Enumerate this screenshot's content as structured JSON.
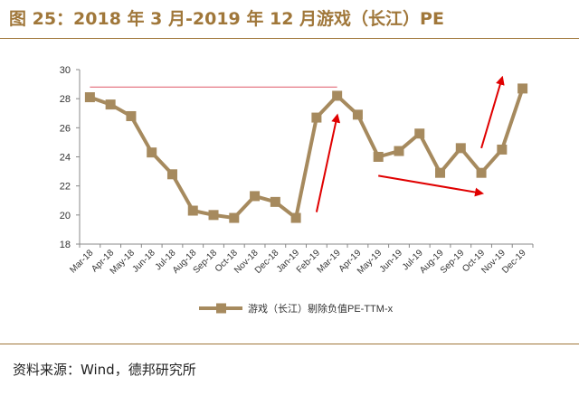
{
  "title": "图 25：2018 年 3 月-2019 年 12 月游戏（长江）PE",
  "source": "资料来源：Wind，德邦研究所",
  "colors": {
    "series": "#a68a5e",
    "reference_line": "#e26a78",
    "arrow": "#e00000",
    "title": "#a0773a"
  },
  "chart_data": {
    "type": "line",
    "categories": [
      "Mar-18",
      "Apr-18",
      "May-18",
      "Jun-18",
      "Jul-18",
      "Aug-18",
      "Sep-18",
      "Oct-18",
      "Nov-18",
      "Dec-18",
      "Jan-19",
      "Feb-19",
      "Mar-19",
      "Apr-19",
      "May-19",
      "Jun-19",
      "Jul-19",
      "Aug-19",
      "Sep-19",
      "Oct-19",
      "Nov-19",
      "Dec-19"
    ],
    "series": [
      {
        "name": "游戏（长江）剔除负值PE-TTM-x",
        "values": [
          28.1,
          27.6,
          26.8,
          24.3,
          22.8,
          20.3,
          20.0,
          19.8,
          21.3,
          20.9,
          19.8,
          26.7,
          28.2,
          26.9,
          24.0,
          24.4,
          25.6,
          22.9,
          24.6,
          22.9,
          24.5,
          28.7
        ]
      }
    ],
    "ylim": [
      18,
      30
    ],
    "yticks": [
      18,
      20,
      22,
      24,
      26,
      28,
      30
    ],
    "grid": false,
    "legend": "bottom-center",
    "reference_line": {
      "y": 28.8,
      "from": "Mar-18",
      "to": "Mar-19"
    },
    "arrows": [
      {
        "from": [
          "Feb-19",
          20.2
        ],
        "to": [
          "Mar-19",
          26.8
        ]
      },
      {
        "from": [
          "May-19",
          22.7
        ],
        "to": [
          "Oct-19",
          21.5
        ]
      },
      {
        "from": [
          "Oct-19",
          24.6
        ],
        "to": [
          "Nov-19",
          29.4
        ]
      }
    ]
  }
}
